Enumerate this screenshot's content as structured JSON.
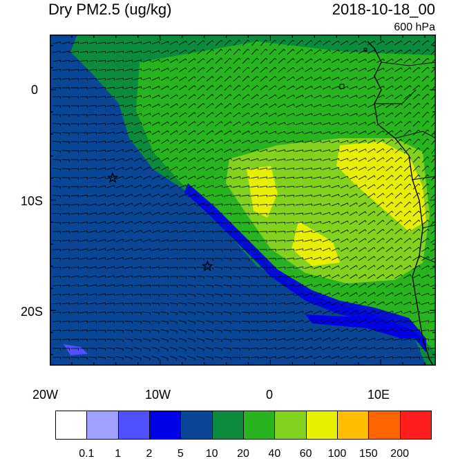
{
  "title": "Dry PM2.5 (ug/kg)",
  "datetime": "2018-10-18_00",
  "level": "600 hPa",
  "axes": {
    "x_ticks": [
      "20W",
      "10W",
      "0",
      "10E"
    ],
    "y_ticks": [
      "0",
      "10S",
      "20S"
    ]
  },
  "markers": [
    {
      "name": "star-marker",
      "lon": -14.3,
      "lat": -8.0
    },
    {
      "name": "star-marker",
      "lon": -5.7,
      "lat": -16.0
    }
  ],
  "colorbar": {
    "labels": [
      "0.1",
      "1",
      "2",
      "5",
      "10",
      "20",
      "40",
      "60",
      "100",
      "150",
      "200"
    ],
    "colors": [
      "#ffffff",
      "#a0a0ff",
      "#5050ff",
      "#0000e6",
      "#0a4696",
      "#0a8c3c",
      "#28b41e",
      "#82d21e",
      "#e6f000",
      "#ffbe00",
      "#ff6400",
      "#ff1e1e"
    ]
  }
}
